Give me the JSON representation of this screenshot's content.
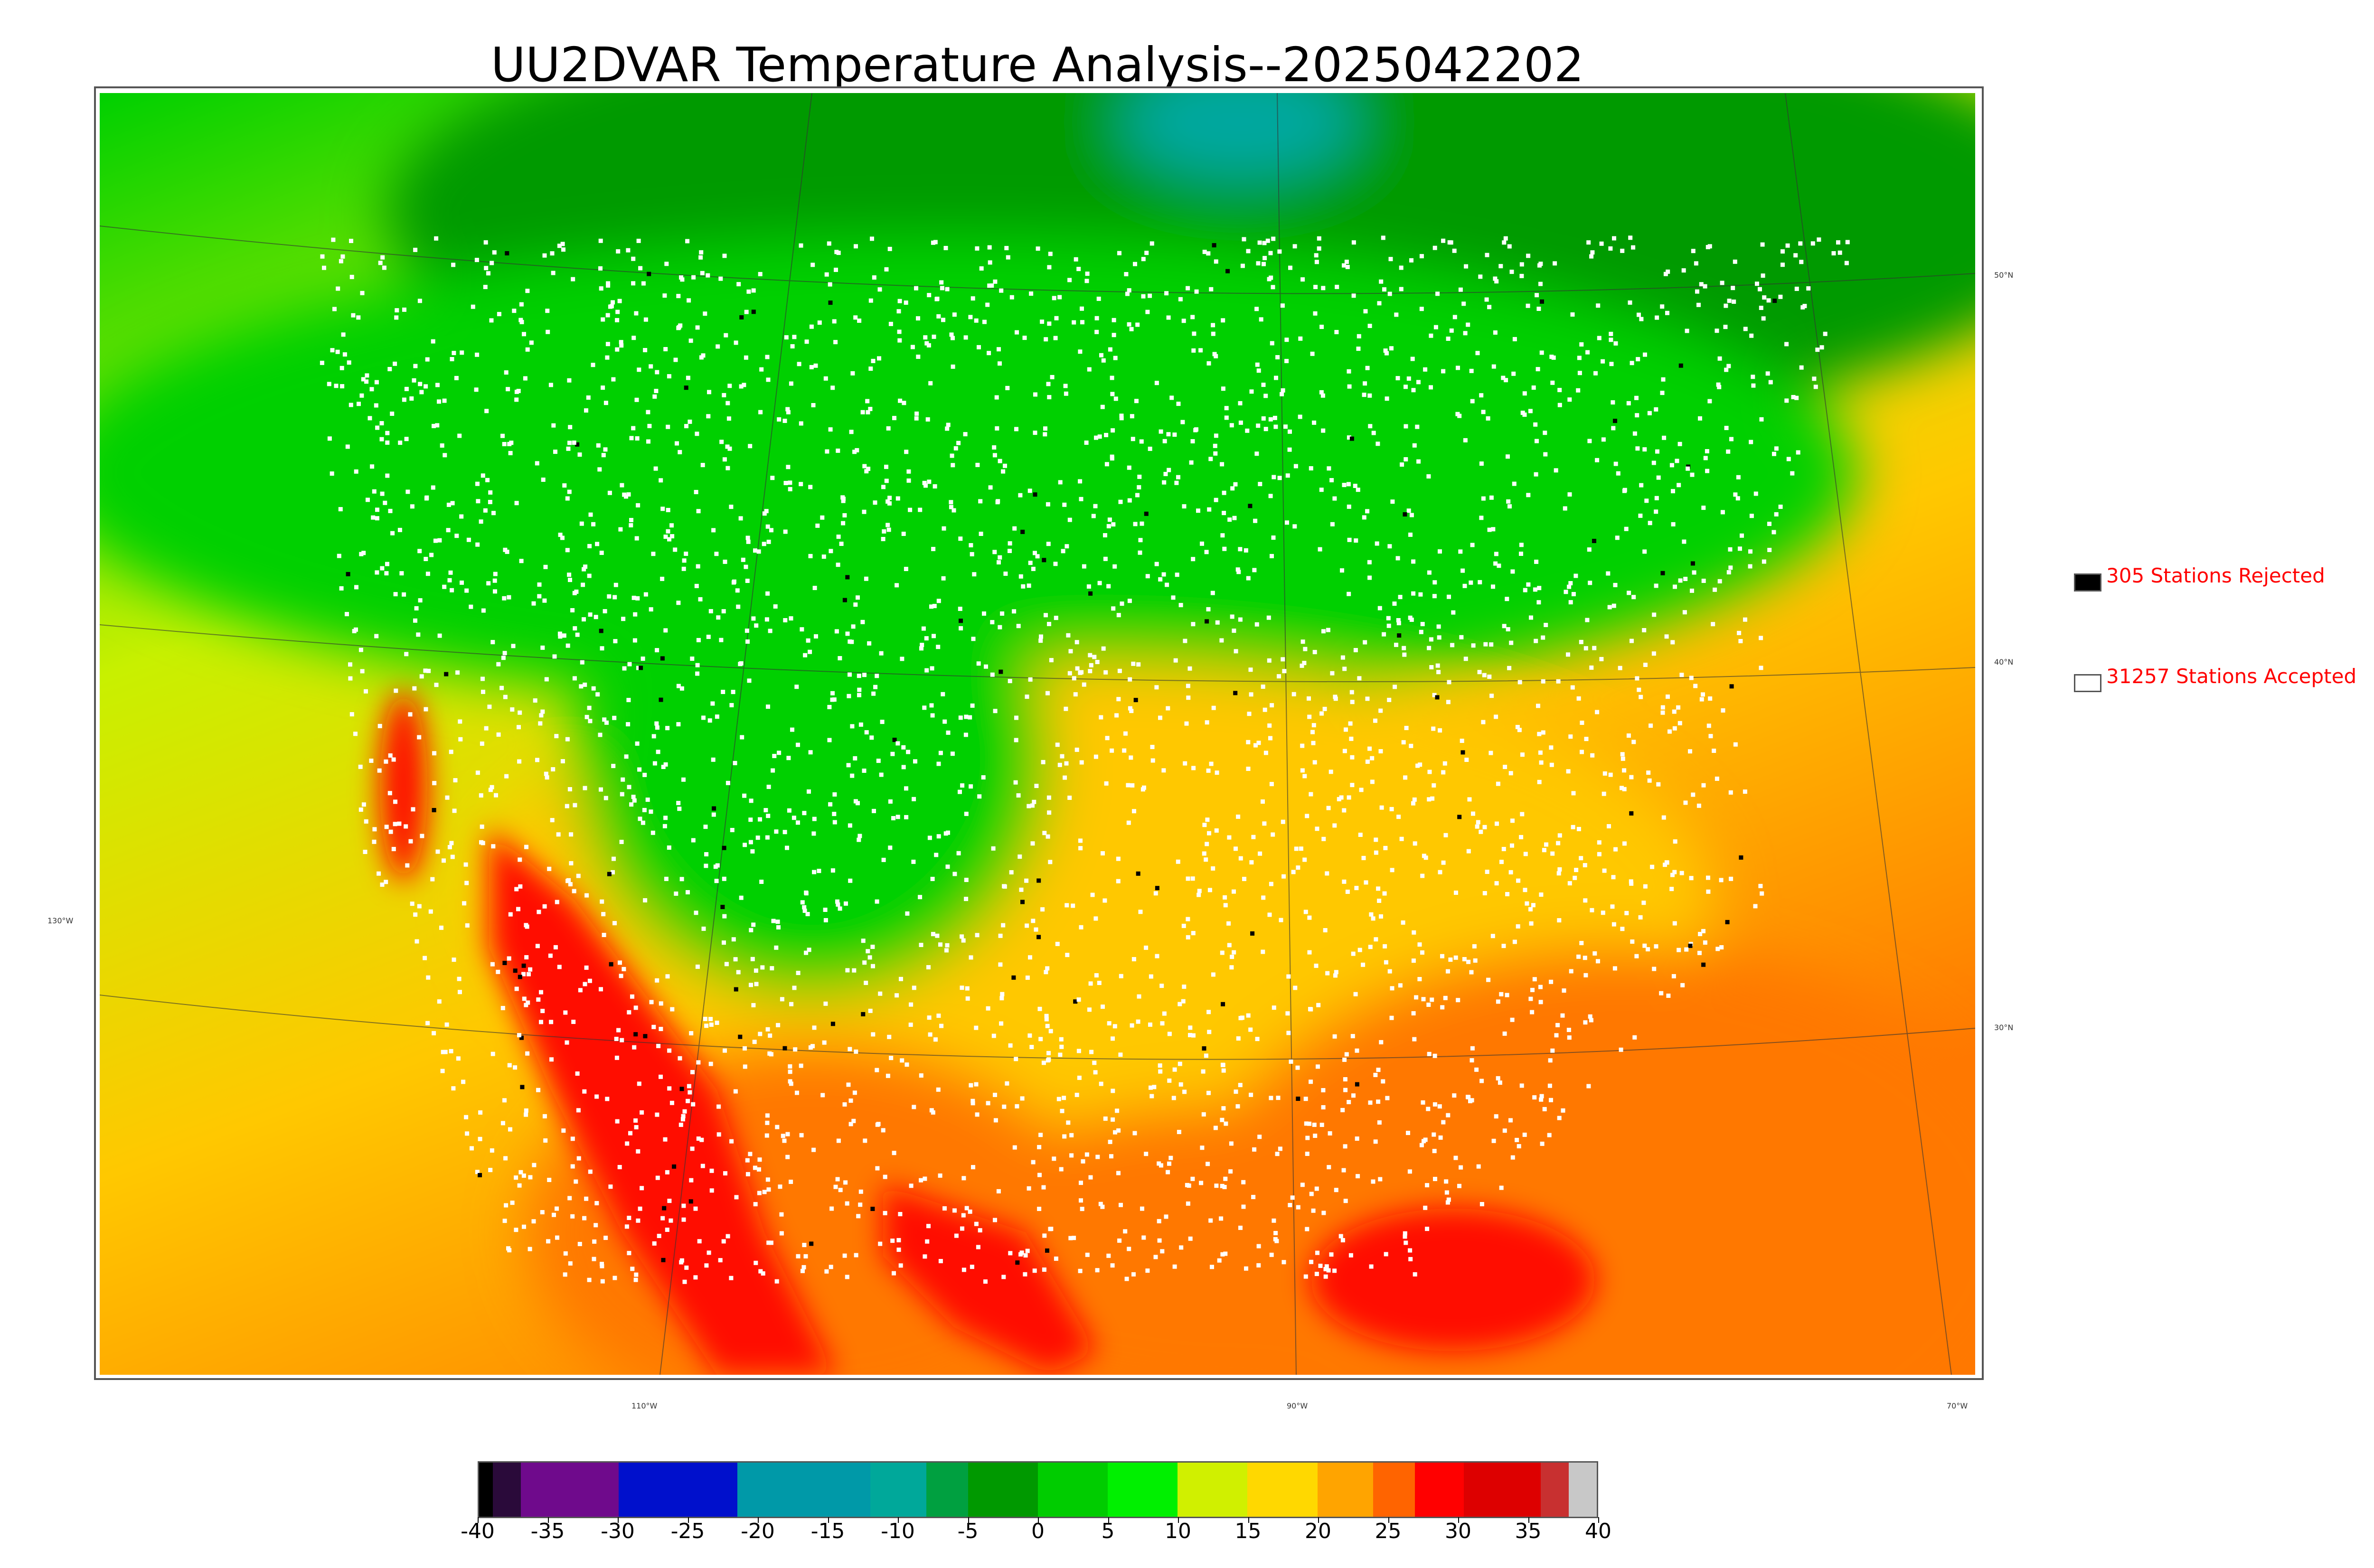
{
  "title": "UU2DVAR Temperature Analysis--2025042202",
  "legend": {
    "rejected": {
      "label": "305 Stations Rejected",
      "swatch_color": "#000000"
    },
    "accepted": {
      "label": "31257 Stations Accepted",
      "swatch_color": "#ffffff"
    }
  },
  "latitude_labels": [
    {
      "text": "50°N"
    },
    {
      "text": "40°N"
    },
    {
      "text": "30°N"
    }
  ],
  "longitude_labels": [
    {
      "text": "130°W"
    },
    {
      "text": "110°W"
    },
    {
      "text": "90°W"
    },
    {
      "text": "70°W"
    }
  ],
  "colorbar": {
    "min": -40,
    "max": 40,
    "ticks": [
      "-40",
      "-35",
      "-30",
      "-25",
      "-20",
      "-15",
      "-10",
      "-5",
      "0",
      "5",
      "10",
      "15",
      "20",
      "25",
      "30",
      "35",
      "40"
    ],
    "segments": [
      {
        "from": -40,
        "to": -39,
        "color": "#000000"
      },
      {
        "from": -39,
        "to": -37,
        "color": "#2a0a3a"
      },
      {
        "from": -37,
        "to": -30,
        "color": "#6f0a8c"
      },
      {
        "from": -30,
        "to": -21.5,
        "color": "#0010cc"
      },
      {
        "from": -21.5,
        "to": -12,
        "color": "#0099a8"
      },
      {
        "from": -12,
        "to": -8,
        "color": "#00a89a"
      },
      {
        "from": -8,
        "to": -5,
        "color": "#00a040"
      },
      {
        "from": -5,
        "to": 0,
        "color": "#009900"
      },
      {
        "from": 0,
        "to": 5,
        "color": "#00cc00"
      },
      {
        "from": 5,
        "to": 10,
        "color": "#00f000"
      },
      {
        "from": 10,
        "to": 15,
        "color": "#d0f000"
      },
      {
        "from": 15,
        "to": 20,
        "color": "#ffd800"
      },
      {
        "from": 20,
        "to": 24,
        "color": "#ffa400"
      },
      {
        "from": 24,
        "to": 27,
        "color": "#ff6400"
      },
      {
        "from": 27,
        "to": 30.5,
        "color": "#ff0000"
      },
      {
        "from": 30.5,
        "to": 36,
        "color": "#dd0000"
      },
      {
        "from": 36,
        "to": 38,
        "color": "#c83030"
      },
      {
        "from": 38,
        "to": 40,
        "color": "#c8c8c8"
      }
    ]
  },
  "map_colors": {
    "ocean_west": "#c8f000",
    "ocean_southeast": "#ffb000",
    "canada": "#00d000",
    "north_cold": "#009a00",
    "hudson_teal": "#00a8a0",
    "plains_warm": "#ffc800",
    "south_hot": "#ff7800",
    "desert_red": "#ff1000",
    "station_accepted": "#ffffff",
    "station_rejected": "#000000"
  }
}
